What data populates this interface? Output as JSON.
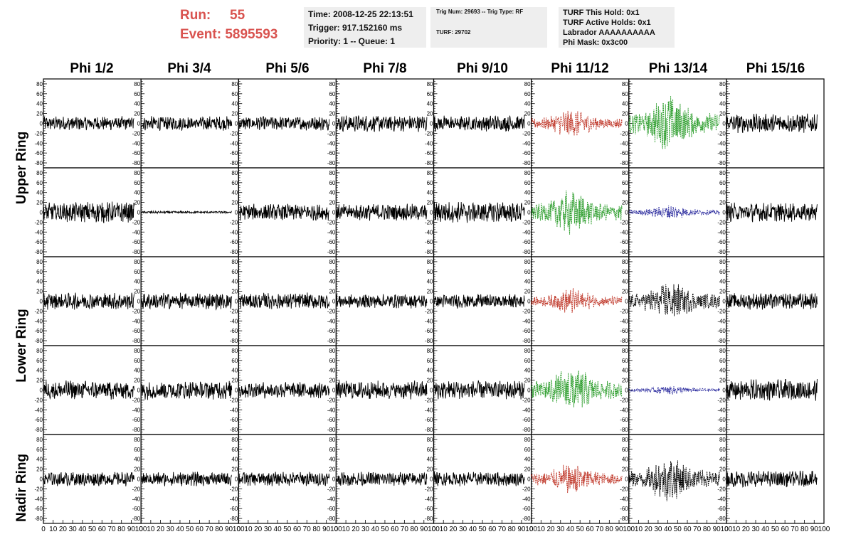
{
  "header": {
    "run_label": "Run:",
    "run_value": "55",
    "event_label": "Event:",
    "event_value": "5895593",
    "time_line": "Time: 2008-12-25 22:13:51",
    "trigger_line": "Trigger: 917.152160 ms",
    "priority_line": "Priority: 1 -- Queue: 1",
    "trig_num_line": "Trig Num: 29693 -- Trig Type: RF",
    "turf_line": "TURF: 29702",
    "turf_hold_line": "TURF This Hold: 0x1",
    "turf_active_line": "TURF Active Holds: 0x1",
    "labrador_line": "Labrador AAAAAAAAAA",
    "phi_mask_line": "Phi Mask: 0x3c00"
  },
  "chart_data": {
    "type": "line",
    "columns": [
      "Phi 1/2",
      "Phi 3/4",
      "Phi 5/6",
      "Phi 7/8",
      "Phi 9/10",
      "Phi 11/12",
      "Phi 13/14",
      "Phi 15/16"
    ],
    "ring_labels": [
      "Upper Ring",
      "Lower Ring",
      "Nadir Ring"
    ],
    "rows": 5,
    "ylim": [
      -90,
      90
    ],
    "yticks": [
      80,
      60,
      40,
      20,
      0,
      -20,
      -40,
      -60,
      -80
    ],
    "xlim": [
      0,
      100
    ],
    "xticks": [
      "0",
      "10",
      "20",
      "30",
      "40",
      "50",
      "60",
      "70",
      "80",
      "90",
      "100"
    ],
    "colors": {
      "normal": "#000000",
      "red": "#c0392b",
      "green": "#2e9e2e",
      "blue": "#2b2b9e"
    },
    "panels": [
      [
        {
          "amp": 12,
          "style": "normal"
        },
        {
          "amp": 12,
          "style": "normal"
        },
        {
          "amp": 12,
          "style": "normal"
        },
        {
          "amp": 14,
          "style": "normal"
        },
        {
          "amp": 14,
          "style": "normal"
        },
        {
          "amp": 25,
          "style": "red",
          "pulse": 1
        },
        {
          "amp": 50,
          "style": "green",
          "pulse": 1
        },
        {
          "amp": 16,
          "style": "normal"
        }
      ],
      [
        {
          "amp": 18,
          "style": "normal"
        },
        {
          "amp": 2,
          "style": "normal"
        },
        {
          "amp": 14,
          "style": "normal"
        },
        {
          "amp": 14,
          "style": "normal"
        },
        {
          "amp": 18,
          "style": "normal"
        },
        {
          "amp": 40,
          "style": "green",
          "pulse": 1
        },
        {
          "amp": 12,
          "style": "blue",
          "pulse": 1
        },
        {
          "amp": 16,
          "style": "normal"
        }
      ],
      [
        {
          "amp": 14,
          "style": "normal"
        },
        {
          "amp": 14,
          "style": "normal"
        },
        {
          "amp": 14,
          "style": "normal"
        },
        {
          "amp": 12,
          "style": "normal"
        },
        {
          "amp": 12,
          "style": "normal"
        },
        {
          "amp": 22,
          "style": "red",
          "pulse": 1
        },
        {
          "amp": 35,
          "style": "black-dash",
          "pulse": 1
        },
        {
          "amp": 14,
          "style": "normal"
        }
      ],
      [
        {
          "amp": 16,
          "style": "normal"
        },
        {
          "amp": 16,
          "style": "normal"
        },
        {
          "amp": 14,
          "style": "normal"
        },
        {
          "amp": 16,
          "style": "normal"
        },
        {
          "amp": 16,
          "style": "normal"
        },
        {
          "amp": 42,
          "style": "green",
          "pulse": 1
        },
        {
          "amp": 8,
          "style": "blue",
          "pulse": 1
        },
        {
          "amp": 18,
          "style": "normal"
        }
      ],
      [
        {
          "amp": 12,
          "style": "normal"
        },
        {
          "amp": 12,
          "style": "normal"
        },
        {
          "amp": 12,
          "style": "normal"
        },
        {
          "amp": 12,
          "style": "normal"
        },
        {
          "amp": 12,
          "style": "normal"
        },
        {
          "amp": 28,
          "style": "red",
          "pulse": 1
        },
        {
          "amp": 40,
          "style": "black-dash",
          "pulse": 1
        },
        {
          "amp": 14,
          "style": "normal"
        }
      ]
    ]
  }
}
